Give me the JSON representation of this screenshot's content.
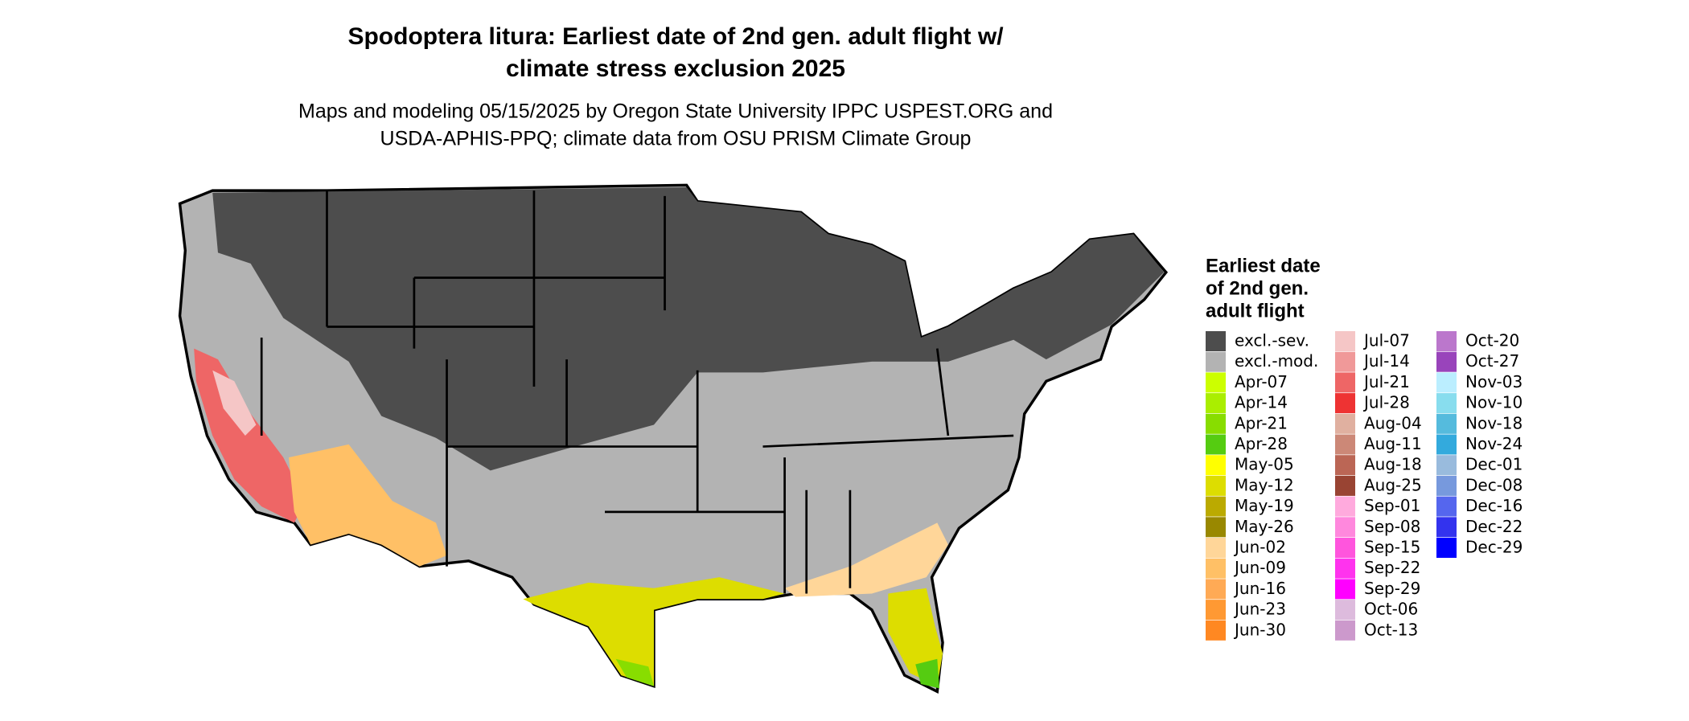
{
  "header": {
    "title": [
      "Spodoptera litura: Earliest date of 2nd gen. adult flight w/",
      "climate stress exclusion 2025"
    ],
    "subtitle": [
      "Maps and modeling 05/15/2025 by Oregon State University IPPC USPEST.ORG and",
      "USDA-APHIS-PPQ; climate data from OSU PRISM Climate Group"
    ]
  },
  "legend": {
    "title": [
      "Earliest date",
      "of 2nd gen.",
      "adult flight"
    ],
    "columns": [
      [
        {
          "label": "excl.-sev.",
          "color": "#4d4d4d"
        },
        {
          "label": "excl.-mod.",
          "color": "#b3b3b3"
        },
        {
          "label": "Apr-07",
          "color": "#ccff00"
        },
        {
          "label": "Apr-14",
          "color": "#aaee00"
        },
        {
          "label": "Apr-21",
          "color": "#88dd00"
        },
        {
          "label": "Apr-28",
          "color": "#55cc11"
        },
        {
          "label": "May-05",
          "color": "#ffff00"
        },
        {
          "label": "May-12",
          "color": "#dddd00"
        },
        {
          "label": "May-19",
          "color": "#bbaa00"
        },
        {
          "label": "May-26",
          "color": "#998800"
        },
        {
          "label": "Jun-02",
          "color": "#ffd699"
        },
        {
          "label": "Jun-09",
          "color": "#ffc066"
        },
        {
          "label": "Jun-16",
          "color": "#ffaa55"
        },
        {
          "label": "Jun-23",
          "color": "#ff9933"
        },
        {
          "label": "Jun-30",
          "color": "#ff8822"
        }
      ],
      [
        {
          "label": "Jul-07",
          "color": "#f5c6c6"
        },
        {
          "label": "Jul-14",
          "color": "#f09999"
        },
        {
          "label": "Jul-21",
          "color": "#ee6666"
        },
        {
          "label": "Jul-28",
          "color": "#ee3333"
        },
        {
          "label": "Aug-04",
          "color": "#e0b0a0"
        },
        {
          "label": "Aug-11",
          "color": "#cc8877"
        },
        {
          "label": "Aug-18",
          "color": "#bb6655"
        },
        {
          "label": "Aug-25",
          "color": "#994433"
        },
        {
          "label": "Sep-01",
          "color": "#ffaadd"
        },
        {
          "label": "Sep-08",
          "color": "#ff88dd"
        },
        {
          "label": "Sep-15",
          "color": "#ff55dd"
        },
        {
          "label": "Sep-22",
          "color": "#ff33ee"
        },
        {
          "label": "Sep-29",
          "color": "#ff00ff"
        },
        {
          "label": "Oct-06",
          "color": "#ddbbdd"
        },
        {
          "label": "Oct-13",
          "color": "#cc99cc"
        }
      ],
      [
        {
          "label": "Oct-20",
          "color": "#bb77cc"
        },
        {
          "label": "Oct-27",
          "color": "#9944bb"
        },
        {
          "label": "Nov-03",
          "color": "#bbeeff"
        },
        {
          "label": "Nov-10",
          "color": "#88ddee"
        },
        {
          "label": "Nov-18",
          "color": "#55bbdd"
        },
        {
          "label": "Nov-24",
          "color": "#33aadd"
        },
        {
          "label": "Dec-01",
          "color": "#99bbdd"
        },
        {
          "label": "Dec-08",
          "color": "#7799dd"
        },
        {
          "label": "Dec-16",
          "color": "#5566ee"
        },
        {
          "label": "Dec-22",
          "color": "#3333ee"
        },
        {
          "label": "Dec-29",
          "color": "#0000ff"
        }
      ]
    ]
  }
}
